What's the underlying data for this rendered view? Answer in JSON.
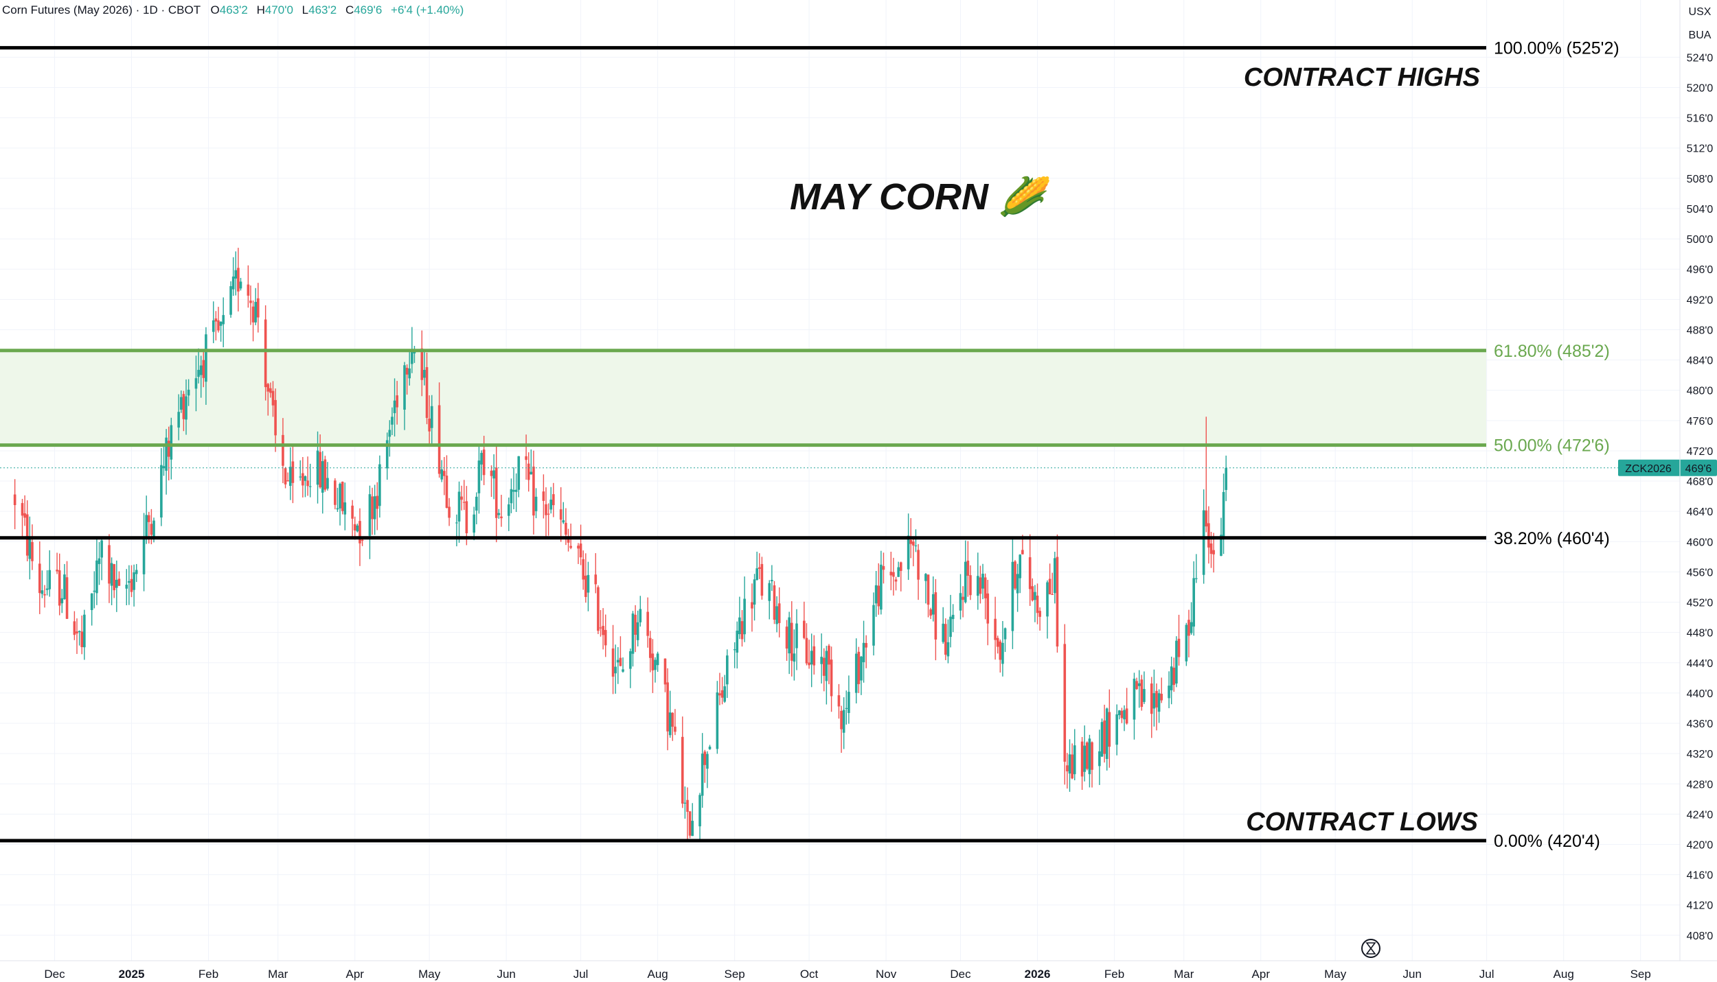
{
  "header": {
    "symbol_title": "Corn Futures (May 2026) · 1D · CBOT",
    "open_label": "O",
    "open": "463'2",
    "high_label": "H",
    "high": "470'0",
    "low_label": "L",
    "low": "463'2",
    "close_label": "C",
    "close": "469'6",
    "change": "+6'4 (+1.40%)",
    "currency": "USX",
    "unit": "BUA"
  },
  "price_tag": {
    "symbol": "ZCK2026",
    "value": "469'6"
  },
  "colors": {
    "up": "#26a69a",
    "down": "#ef5350",
    "fib_green": "#6aa84f",
    "fib_zone": "#eef7ea",
    "line_black": "#000000",
    "tag_bg": "#26a69a"
  },
  "annotations": {
    "title": "MAY CORN 🌽",
    "contract_highs": "CONTRACT HIGHS",
    "contract_lows": "CONTRACT LOWS"
  },
  "chart_data": {
    "type": "candlestick",
    "y_axis_side": "right",
    "ylim": [
      404,
      528
    ],
    "y_ticks": [
      {
        "value": 408,
        "label": "408'0"
      },
      {
        "value": 412,
        "label": "412'0"
      },
      {
        "value": 416,
        "label": "416'0"
      },
      {
        "value": 420,
        "label": "420'0"
      },
      {
        "value": 424,
        "label": "424'0"
      },
      {
        "value": 428,
        "label": "428'0"
      },
      {
        "value": 432,
        "label": "432'0"
      },
      {
        "value": 436,
        "label": "436'0"
      },
      {
        "value": 440,
        "label": "440'0"
      },
      {
        "value": 444,
        "label": "444'0"
      },
      {
        "value": 448,
        "label": "448'0"
      },
      {
        "value": 452,
        "label": "452'0"
      },
      {
        "value": 456,
        "label": "456'0"
      },
      {
        "value": 460,
        "label": "460'0"
      },
      {
        "value": 464,
        "label": "464'0"
      },
      {
        "value": 468,
        "label": "468'0"
      },
      {
        "value": 472,
        "label": "472'0"
      },
      {
        "value": 476,
        "label": "476'0"
      },
      {
        "value": 480,
        "label": "480'0"
      },
      {
        "value": 484,
        "label": "484'0"
      },
      {
        "value": 488,
        "label": "488'0"
      },
      {
        "value": 492,
        "label": "492'0"
      },
      {
        "value": 496,
        "label": "496'0"
      },
      {
        "value": 500,
        "label": "500'0"
      },
      {
        "value": 504,
        "label": "504'0"
      },
      {
        "value": 508,
        "label": "508'0"
      },
      {
        "value": 512,
        "label": "512'0"
      },
      {
        "value": 516,
        "label": "516'0"
      },
      {
        "value": 520,
        "label": "520'0"
      },
      {
        "value": 524,
        "label": "524'0"
      }
    ],
    "x_ticks": [
      {
        "date": "2024-12-01",
        "label": "Dec",
        "bold": false
      },
      {
        "date": "2025-01-01",
        "label": "2025",
        "bold": true
      },
      {
        "date": "2025-02-01",
        "label": "Feb",
        "bold": false
      },
      {
        "date": "2025-03-01",
        "label": "Mar",
        "bold": false
      },
      {
        "date": "2025-04-01",
        "label": "Apr",
        "bold": false
      },
      {
        "date": "2025-05-01",
        "label": "May",
        "bold": false
      },
      {
        "date": "2025-06-01",
        "label": "Jun",
        "bold": false
      },
      {
        "date": "2025-07-01",
        "label": "Jul",
        "bold": false
      },
      {
        "date": "2025-08-01",
        "label": "Aug",
        "bold": false
      },
      {
        "date": "2025-09-01",
        "label": "Sep",
        "bold": false
      },
      {
        "date": "2025-10-01",
        "label": "Oct",
        "bold": false
      },
      {
        "date": "2025-11-01",
        "label": "Nov",
        "bold": false
      },
      {
        "date": "2025-12-01",
        "label": "Dec",
        "bold": false
      },
      {
        "date": "2026-01-01",
        "label": "2026",
        "bold": true
      },
      {
        "date": "2026-02-01",
        "label": "Feb",
        "bold": false
      },
      {
        "date": "2026-03-01",
        "label": "Mar",
        "bold": false
      },
      {
        "date": "2026-04-01",
        "label": "Apr",
        "bold": false
      },
      {
        "date": "2026-05-01",
        "label": "May",
        "bold": false
      },
      {
        "date": "2026-06-01",
        "label": "Jun",
        "bold": false
      },
      {
        "date": "2026-07-01",
        "label": "Jul",
        "bold": false
      },
      {
        "date": "2026-08-01",
        "label": "Aug",
        "bold": false
      },
      {
        "date": "2026-09-01",
        "label": "Sep",
        "bold": false
      }
    ],
    "fib_levels": [
      {
        "level": 1.0,
        "price": 525.25,
        "label": "100.00% (525'2)",
        "color": "#000000"
      },
      {
        "level": 0.618,
        "price": 485.25,
        "label": "61.80% (485'2)",
        "color": "#6aa84f"
      },
      {
        "level": 0.5,
        "price": 472.75,
        "label": "50.00% (472'6)",
        "color": "#6aa84f"
      },
      {
        "level": 0.382,
        "price": 460.5,
        "label": "38.20% (460'4)",
        "color": "#000000"
      },
      {
        "level": 0.0,
        "price": 420.5,
        "label": "0.00% (420'4)",
        "color": "#000000"
      }
    ],
    "last_price": 469.75,
    "price_path": [
      [
        "2024-11-15",
        466
      ],
      [
        "2024-11-25",
        454
      ],
      [
        "2024-12-04",
        454
      ],
      [
        "2024-12-12",
        446
      ],
      [
        "2024-12-20",
        459
      ],
      [
        "2024-12-27",
        452
      ],
      [
        "2025-01-03",
        457
      ],
      [
        "2025-01-10",
        465
      ],
      [
        "2025-01-17",
        474
      ],
      [
        "2025-01-24",
        481
      ],
      [
        "2025-01-31",
        485
      ],
      [
        "2025-02-07",
        488
      ],
      [
        "2025-02-14",
        496
      ],
      [
        "2025-02-21",
        490
      ],
      [
        "2025-02-28",
        473
      ],
      [
        "2025-03-07",
        466
      ],
      [
        "2025-03-14",
        470
      ],
      [
        "2025-03-21",
        468
      ],
      [
        "2025-03-28",
        464
      ],
      [
        "2025-04-04",
        462
      ],
      [
        "2025-04-11",
        468
      ],
      [
        "2025-04-18",
        480
      ],
      [
        "2025-04-24",
        487
      ],
      [
        "2025-05-02",
        476
      ],
      [
        "2025-05-09",
        466
      ],
      [
        "2025-05-16",
        463
      ],
      [
        "2025-05-23",
        471
      ],
      [
        "2025-05-30",
        464
      ],
      [
        "2025-06-06",
        470
      ],
      [
        "2025-06-13",
        465
      ],
      [
        "2025-06-20",
        464
      ],
      [
        "2025-06-27",
        459
      ],
      [
        "2025-07-03",
        455
      ],
      [
        "2025-07-10",
        449
      ],
      [
        "2025-07-17",
        442
      ],
      [
        "2025-07-24",
        451
      ],
      [
        "2025-07-31",
        444
      ],
      [
        "2025-08-07",
        435
      ],
      [
        "2025-08-13",
        422
      ],
      [
        "2025-08-20",
        432
      ],
      [
        "2025-08-27",
        440
      ],
      [
        "2025-09-03",
        449
      ],
      [
        "2025-09-10",
        455
      ],
      [
        "2025-09-17",
        452
      ],
      [
        "2025-09-24",
        447
      ],
      [
        "2025-10-01",
        445
      ],
      [
        "2025-10-08",
        444
      ],
      [
        "2025-10-15",
        437
      ],
      [
        "2025-10-22",
        445
      ],
      [
        "2025-10-29",
        454
      ],
      [
        "2025-11-05",
        456
      ],
      [
        "2025-11-12",
        460
      ],
      [
        "2025-11-19",
        451
      ],
      [
        "2025-11-26",
        446
      ],
      [
        "2025-12-03",
        456
      ],
      [
        "2025-12-10",
        454
      ],
      [
        "2025-12-17",
        446
      ],
      [
        "2025-12-24",
        458
      ],
      [
        "2026-01-01",
        452
      ],
      [
        "2026-01-08",
        455
      ],
      [
        "2026-01-12",
        430
      ],
      [
        "2026-01-19",
        431
      ],
      [
        "2026-01-26",
        434
      ],
      [
        "2026-02-02",
        437
      ],
      [
        "2026-02-09",
        439
      ],
      [
        "2026-02-16",
        438
      ],
      [
        "2026-02-23",
        442
      ],
      [
        "2026-03-02",
        447
      ],
      [
        "2026-03-06",
        457
      ],
      [
        "2026-03-10",
        465
      ],
      [
        "2026-03-13",
        456
      ],
      [
        "2026-03-16",
        461
      ],
      [
        "2026-03-18",
        469.75
      ]
    ]
  }
}
